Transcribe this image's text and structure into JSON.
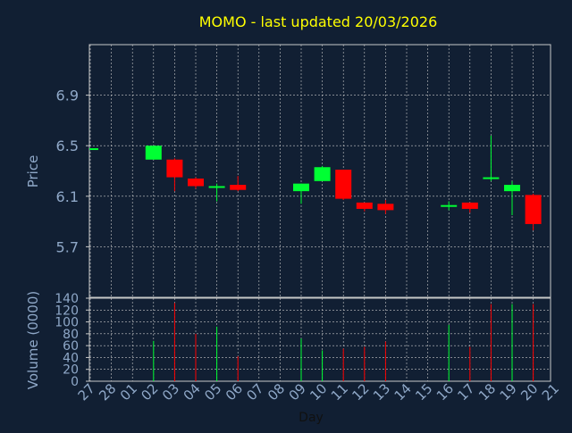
{
  "title": "MOMO - last updated 20/03/2026",
  "colors": {
    "background": "#111f33",
    "title": "#ffff00",
    "axis_text": "#8fa8c8",
    "frame": "#c8c8c8",
    "grid": "#c8c8c8",
    "up": "#00ff33",
    "down": "#ff0000"
  },
  "chart_data": [
    {
      "type": "candlestick",
      "ylabel": "Price",
      "ylim": [
        5.3,
        7.3
      ],
      "yticks": [
        5.7,
        6.1,
        6.5,
        6.9
      ],
      "ytick_labels": [
        "5.7",
        "6.1",
        "6.5",
        "6.9"
      ],
      "grid": true,
      "candles": [
        {
          "day": "27",
          "open": 6.47,
          "high": 6.48,
          "low": 6.47,
          "close": 6.48
        },
        {
          "day": "02",
          "open": 6.39,
          "high": 6.5,
          "low": 6.39,
          "close": 6.5
        },
        {
          "day": "03",
          "open": 6.39,
          "high": 6.4,
          "low": 6.14,
          "close": 6.25
        },
        {
          "day": "04",
          "open": 6.24,
          "high": 6.25,
          "low": 6.16,
          "close": 6.18
        },
        {
          "day": "05",
          "open": 6.17,
          "high": 6.2,
          "low": 6.06,
          "close": 6.18
        },
        {
          "day": "06",
          "open": 6.19,
          "high": 6.26,
          "low": 6.14,
          "close": 6.15
        },
        {
          "day": "09",
          "open": 6.14,
          "high": 6.2,
          "low": 6.04,
          "close": 6.2
        },
        {
          "day": "10",
          "open": 6.22,
          "high": 6.34,
          "low": 6.22,
          "close": 6.33
        },
        {
          "day": "11",
          "open": 6.31,
          "high": 6.31,
          "low": 6.07,
          "close": 6.08
        },
        {
          "day": "12",
          "open": 6.05,
          "high": 6.05,
          "low": 5.98,
          "close": 6.0
        },
        {
          "day": "13",
          "open": 6.04,
          "high": 6.07,
          "low": 5.96,
          "close": 5.99
        },
        {
          "day": "16",
          "open": 6.02,
          "high": 6.06,
          "low": 5.99,
          "close": 6.03
        },
        {
          "day": "17",
          "open": 6.05,
          "high": 6.05,
          "low": 5.97,
          "close": 6.0
        },
        {
          "day": "18",
          "open": 6.24,
          "high": 6.58,
          "low": 6.22,
          "close": 6.25
        },
        {
          "day": "19",
          "open": 6.14,
          "high": 6.22,
          "low": 5.95,
          "close": 6.19
        },
        {
          "day": "20",
          "open": 6.11,
          "high": 6.12,
          "low": 5.83,
          "close": 5.88
        }
      ]
    },
    {
      "type": "bar",
      "ylabel": "Volume (0000)",
      "ylim": [
        0,
        140
      ],
      "yticks": [
        0,
        20,
        40,
        60,
        80,
        100,
        120,
        140
      ],
      "ytick_labels": [
        "0",
        "20",
        "40",
        "60",
        "80",
        "100",
        "120",
        "140"
      ],
      "grid": true,
      "volumes": [
        {
          "day": "02",
          "value": 68,
          "direction": "up"
        },
        {
          "day": "03",
          "value": 132,
          "direction": "down"
        },
        {
          "day": "04",
          "value": 80,
          "direction": "down"
        },
        {
          "day": "05",
          "value": 92,
          "direction": "up"
        },
        {
          "day": "06",
          "value": 42,
          "direction": "down"
        },
        {
          "day": "09",
          "value": 72,
          "direction": "up"
        },
        {
          "day": "10",
          "value": 52,
          "direction": "up"
        },
        {
          "day": "11",
          "value": 55,
          "direction": "down"
        },
        {
          "day": "12",
          "value": 58,
          "direction": "down"
        },
        {
          "day": "13",
          "value": 67,
          "direction": "down"
        },
        {
          "day": "16",
          "value": 95,
          "direction": "up"
        },
        {
          "day": "17",
          "value": 58,
          "direction": "down"
        },
        {
          "day": "18",
          "value": 130,
          "direction": "down"
        },
        {
          "day": "19",
          "value": 130,
          "direction": "up"
        },
        {
          "day": "20",
          "value": 130,
          "direction": "down"
        }
      ]
    }
  ],
  "x_axis": {
    "label": "Day",
    "categories": [
      "27",
      "28",
      "01",
      "02",
      "03",
      "04",
      "05",
      "06",
      "07",
      "08",
      "09",
      "10",
      "11",
      "12",
      "13",
      "14",
      "15",
      "16",
      "17",
      "18",
      "19",
      "20",
      "21"
    ]
  }
}
